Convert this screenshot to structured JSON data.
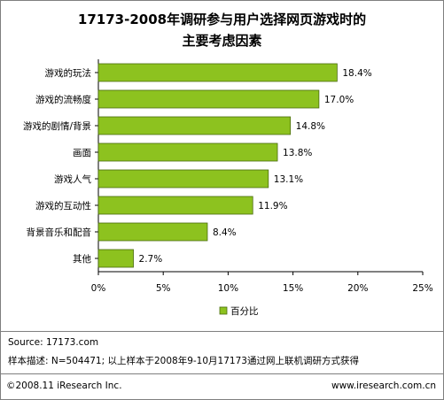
{
  "title_line1": "17173-2008年调研参与用户选择网页游戏时的",
  "title_line2": "主要考虑因素",
  "chart_data": {
    "type": "bar",
    "orientation": "horizontal",
    "categories": [
      "游戏的玩法",
      "游戏的流畅度",
      "游戏的剧情/背景",
      "画面",
      "游戏人气",
      "游戏的互动性",
      "背景音乐和配音",
      "其他"
    ],
    "series": [
      {
        "name": "百分比",
        "values": [
          18.4,
          17.0,
          14.8,
          13.8,
          13.1,
          11.9,
          8.4,
          2.7
        ]
      }
    ],
    "value_labels": [
      "18.4%",
      "17.0%",
      "14.8%",
      "13.8%",
      "13.1%",
      "11.9%",
      "8.4%",
      "2.7%"
    ],
    "xticks": [
      "0%",
      "5%",
      "10%",
      "15%",
      "20%",
      "25%"
    ],
    "xlim": [
      0,
      25
    ],
    "grid": false,
    "legend_position": "bottom",
    "bar_color": "#8dc21f"
  },
  "source": "Source:  17173.com",
  "sample_note": "样本描述:  N=504471; 以上样本于2008年9-10月17173通过网上联机调研方式获得",
  "footer_left": "©2008.11 iResearch Inc.",
  "footer_right": "www.iresearch.com.cn"
}
